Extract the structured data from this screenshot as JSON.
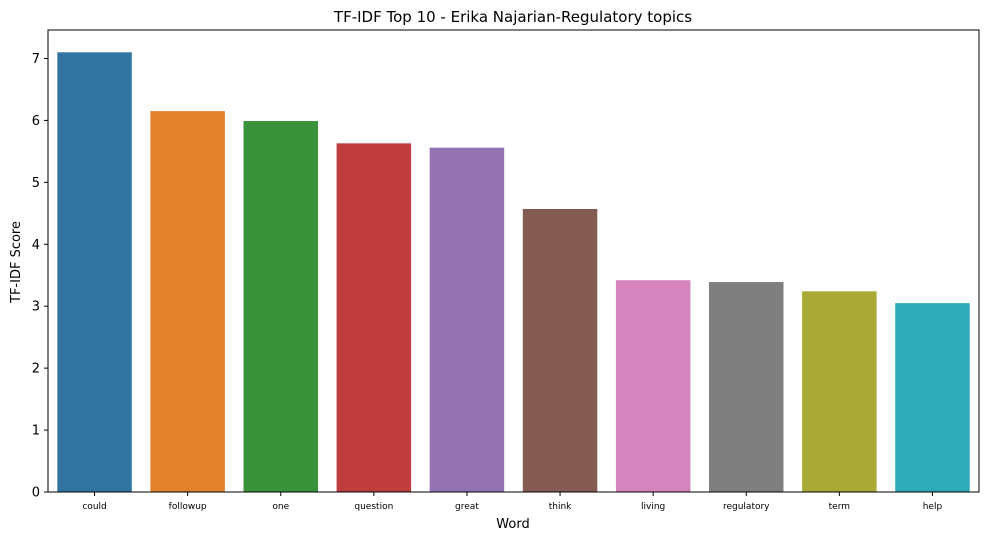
{
  "chart_data": {
    "type": "bar",
    "title": "TF-IDF Top 10 - Erika Najarian-Regulatory topics",
    "xlabel": "Word",
    "ylabel": "TF-IDF Score",
    "categories": [
      "could",
      "followup",
      "one",
      "question",
      "great",
      "think",
      "living",
      "regulatory",
      "term",
      "help"
    ],
    "values": [
      7.1,
      6.15,
      5.99,
      5.63,
      5.56,
      4.57,
      3.42,
      3.39,
      3.24,
      3.05
    ],
    "colors": [
      "#3274a1",
      "#e1812c",
      "#3a923a",
      "#c03d3e",
      "#9372b2",
      "#845b53",
      "#d684bd",
      "#7f7f7f",
      "#a9aa35",
      "#2eabb8"
    ],
    "ylim": [
      0,
      7.46
    ],
    "yticks": [
      0,
      1,
      2,
      3,
      4,
      5,
      6,
      7
    ],
    "grid": false,
    "legend": "none"
  }
}
